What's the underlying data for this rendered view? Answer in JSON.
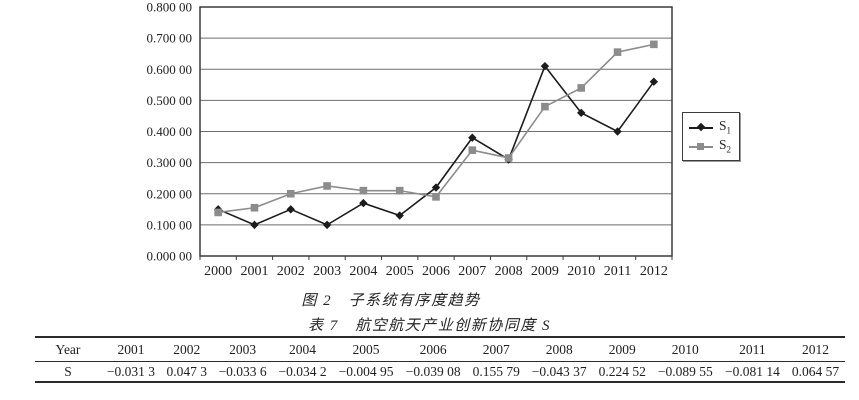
{
  "figure": {
    "caption": "图 2　子系统有序度趋势"
  },
  "chart_data": {
    "type": "line",
    "title": "",
    "xlabel": "",
    "ylabel": "",
    "grid": true,
    "legend_position": "right",
    "ylim": [
      0,
      0.8
    ],
    "ytick_labels_desc": [
      "0.800 00",
      "0.700 00",
      "0.600 00",
      "0.500 00",
      "0.400 00",
      "0.300 00",
      "0.200 00",
      "0.100 00",
      "0.000 00"
    ],
    "x": [
      "2000",
      "2001",
      "2002",
      "2003",
      "2004",
      "2005",
      "2006",
      "2007",
      "2008",
      "2009",
      "2010",
      "2011",
      "2012"
    ],
    "series": [
      {
        "name": "S₁",
        "marker": "diamond",
        "color": "#1c1c1c",
        "values": [
          0.15,
          0.1,
          0.15,
          0.1,
          0.17,
          0.13,
          0.22,
          0.38,
          0.31,
          0.61,
          0.46,
          0.4,
          0.56
        ]
      },
      {
        "name": "S₂",
        "marker": "square",
        "color": "#8c8c8c",
        "values": [
          0.14,
          0.155,
          0.2,
          0.225,
          0.21,
          0.21,
          0.19,
          0.34,
          0.315,
          0.48,
          0.54,
          0.655,
          0.68
        ]
      }
    ]
  },
  "legend": {
    "items": [
      {
        "base": "S",
        "sub": "1",
        "marker": "diamond",
        "color": "#1c1c1c"
      },
      {
        "base": "S",
        "sub": "2",
        "marker": "square",
        "color": "#8c8c8c"
      }
    ]
  },
  "table": {
    "caption": "表 7　航空航天产业创新协同度 S",
    "row1_label": "Year",
    "row2_label": "S",
    "years": [
      "2001",
      "2002",
      "2003",
      "2004",
      "2005",
      "2006",
      "2007",
      "2008",
      "2009",
      "2010",
      "2011",
      "2012"
    ],
    "values": [
      "−0.031 3",
      "0.047 3",
      "−0.033 6",
      "−0.034 2",
      "−0.004 95",
      "−0.039 08",
      "0.155 79",
      "−0.043 37",
      "0.224 52",
      "−0.089 55",
      "−0.081 14",
      "0.064 57"
    ]
  }
}
